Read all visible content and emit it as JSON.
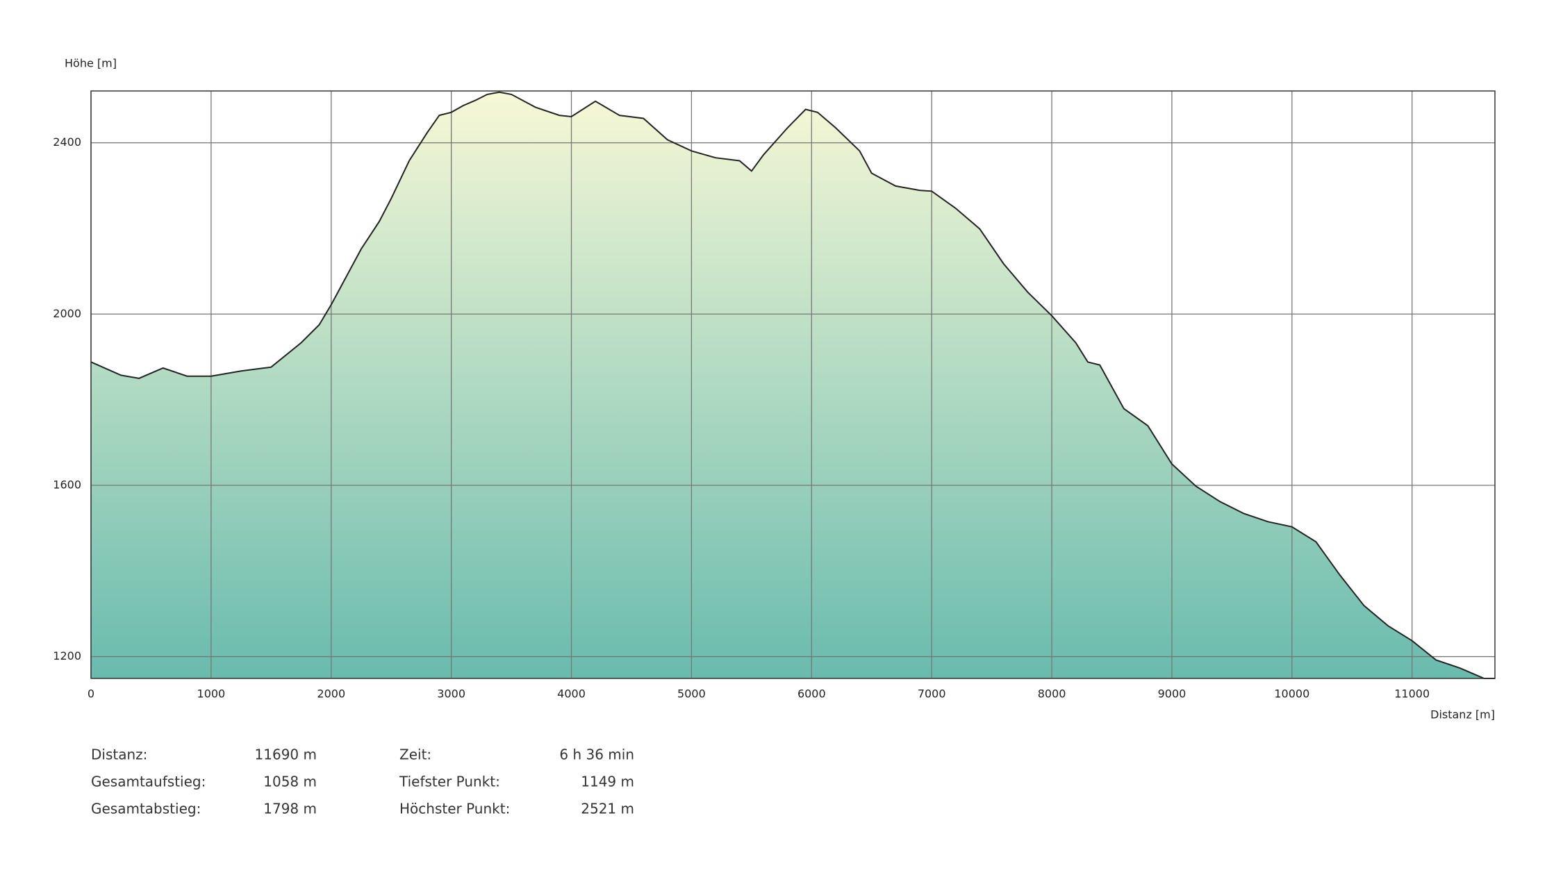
{
  "chart_data": {
    "type": "area",
    "ylabel": "Höhe [m]",
    "xlabel": "Distanz [m]",
    "x": [
      0,
      250,
      400,
      600,
      800,
      1000,
      1250,
      1500,
      1750,
      1900,
      2000,
      2100,
      2250,
      2400,
      2500,
      2650,
      2800,
      2900,
      3000,
      3100,
      3200,
      3300,
      3400,
      3500,
      3700,
      3900,
      4000,
      4200,
      4400,
      4600,
      4800,
      5000,
      5200,
      5400,
      5500,
      5600,
      5800,
      5950,
      6050,
      6200,
      6400,
      6500,
      6700,
      6900,
      7000,
      7200,
      7400,
      7600,
      7800,
      8000,
      8200,
      8300,
      8400,
      8600,
      8800,
      9000,
      9200,
      9400,
      9600,
      9800,
      10000,
      10200,
      10400,
      10600,
      10800,
      11000,
      11200,
      11400,
      11600,
      11690
    ],
    "values": [
      1888,
      1857,
      1850,
      1874,
      1855,
      1855,
      1867,
      1876,
      1933,
      1975,
      2022,
      2074,
      2152,
      2216,
      2270,
      2358,
      2424,
      2464,
      2471,
      2487,
      2499,
      2513,
      2518,
      2513,
      2483,
      2464,
      2461,
      2497,
      2464,
      2457,
      2407,
      2381,
      2365,
      2358,
      2334,
      2372,
      2435,
      2478,
      2471,
      2435,
      2381,
      2329,
      2299,
      2289,
      2287,
      2247,
      2199,
      2117,
      2051,
      1996,
      1933,
      1888,
      1881,
      1779,
      1739,
      1650,
      1598,
      1562,
      1534,
      1515,
      1503,
      1468,
      1390,
      1319,
      1272,
      1237,
      1192,
      1173,
      1149,
      1149
    ],
    "color": "#222222",
    "xlim": [
      0,
      11690
    ],
    "ylim": [
      1149,
      2521
    ],
    "xticks": [
      0,
      1000,
      2000,
      3000,
      4000,
      5000,
      6000,
      7000,
      8000,
      9000,
      10000,
      11000
    ],
    "yticks": [
      1200,
      1600,
      2000,
      2400
    ],
    "grid": true
  },
  "summary": {
    "rows": [
      [
        "Distanz:",
        "11690 m",
        "Zeit:",
        "6 h 36 min"
      ],
      [
        "Gesamtaufstieg:",
        "1058 m",
        "Tiefster Punkt:",
        "1149 m"
      ],
      [
        "Gesamtabstieg:",
        "1798 m",
        "Höchster Punkt:",
        "2521 m"
      ]
    ]
  }
}
